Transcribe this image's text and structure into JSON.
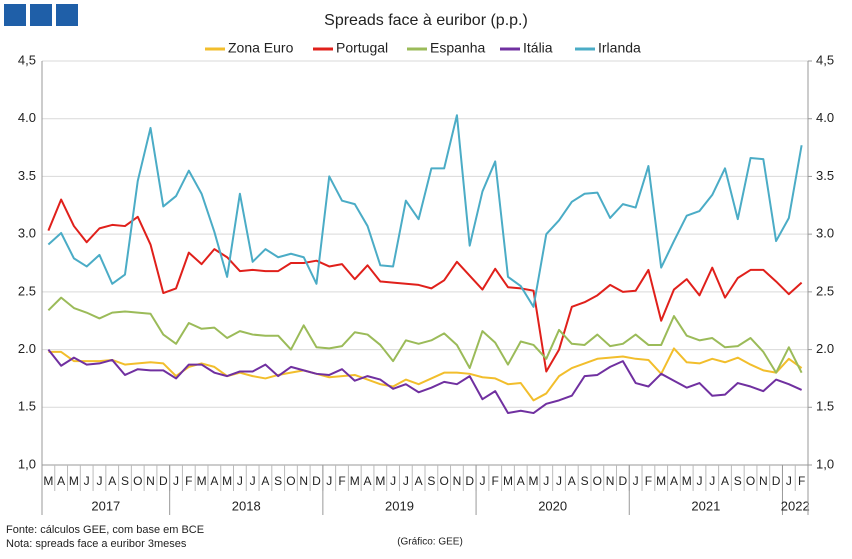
{
  "chart_data": {
    "type": "line",
    "title": "Spreads face à euribor (p.p.)",
    "categories": [
      "M",
      "A",
      "M",
      "J",
      "J",
      "A",
      "S",
      "O",
      "N",
      "D",
      "J",
      "F",
      "M",
      "A",
      "M",
      "J",
      "J",
      "A",
      "S",
      "O",
      "N",
      "D",
      "J",
      "F",
      "M",
      "A",
      "M",
      "J",
      "J",
      "A",
      "S",
      "O",
      "N",
      "D",
      "J",
      "F",
      "M",
      "A",
      "M",
      "J",
      "J",
      "A",
      "S",
      "O",
      "N",
      "D",
      "J",
      "F",
      "M",
      "A",
      "M",
      "J",
      "J",
      "A",
      "S",
      "O",
      "N",
      "D",
      "J",
      "F"
    ],
    "year_groups": [
      {
        "label": "2017",
        "span": 10
      },
      {
        "label": "2018",
        "span": 12
      },
      {
        "label": "2019",
        "span": 12
      },
      {
        "label": "2020",
        "span": 12
      },
      {
        "label": "2021",
        "span": 12
      },
      {
        "label": "2022",
        "span": 2
      }
    ],
    "series": [
      {
        "name": "Zona Euro",
        "color": "#f2be2c",
        "values": [
          1.98,
          1.98,
          1.9,
          1.9,
          1.9,
          1.91,
          1.87,
          1.88,
          1.89,
          1.88,
          1.77,
          1.85,
          1.88,
          1.85,
          1.77,
          1.8,
          1.77,
          1.75,
          1.78,
          1.8,
          1.82,
          1.79,
          1.76,
          1.77,
          1.78,
          1.74,
          1.7,
          1.68,
          1.74,
          1.7,
          1.75,
          1.8,
          1.8,
          1.79,
          1.76,
          1.75,
          1.7,
          1.71,
          1.56,
          1.62,
          1.77,
          1.84,
          1.88,
          1.92,
          1.93,
          1.94,
          1.92,
          1.91,
          1.79,
          2.01,
          1.89,
          1.88,
          1.92,
          1.89,
          1.93,
          1.87,
          1.82,
          1.8,
          1.92,
          1.84
        ]
      },
      {
        "name": "Portugal",
        "color": "#e0201b",
        "values": [
          3.03,
          3.3,
          3.07,
          2.93,
          3.05,
          3.08,
          3.07,
          3.15,
          2.91,
          2.49,
          2.53,
          2.84,
          2.74,
          2.87,
          2.8,
          2.68,
          2.69,
          2.68,
          2.68,
          2.75,
          2.75,
          2.77,
          2.72,
          2.74,
          2.61,
          2.73,
          2.59,
          2.58,
          2.57,
          2.56,
          2.53,
          2.6,
          2.76,
          2.64,
          2.52,
          2.7,
          2.54,
          2.53,
          2.51,
          1.81,
          2.0,
          2.37,
          2.41,
          2.47,
          2.56,
          2.5,
          2.51,
          2.69,
          2.25,
          2.52,
          2.61,
          2.47,
          2.71,
          2.45,
          2.62,
          2.69,
          2.69,
          2.59,
          2.48,
          2.58
        ]
      },
      {
        "name": "Espanha",
        "color": "#9bbb59",
        "values": [
          2.34,
          2.45,
          2.36,
          2.32,
          2.27,
          2.32,
          2.33,
          2.32,
          2.31,
          2.13,
          2.05,
          2.23,
          2.18,
          2.19,
          2.1,
          2.16,
          2.13,
          2.12,
          2.12,
          2.0,
          2.21,
          2.02,
          2.01,
          2.03,
          2.15,
          2.13,
          2.04,
          1.9,
          2.08,
          2.05,
          2.08,
          2.14,
          2.04,
          1.84,
          2.16,
          2.06,
          1.87,
          2.07,
          2.04,
          1.92,
          2.17,
          2.05,
          2.04,
          2.13,
          2.03,
          2.05,
          2.13,
          2.04,
          2.04,
          2.29,
          2.12,
          2.08,
          2.1,
          2.02,
          2.03,
          2.1,
          1.98,
          1.8,
          2.02,
          1.8
        ]
      },
      {
        "name": "Itália",
        "color": "#7030a0",
        "values": [
          2.0,
          1.86,
          1.93,
          1.87,
          1.88,
          1.91,
          1.78,
          1.83,
          1.82,
          1.82,
          1.75,
          1.87,
          1.87,
          1.8,
          1.77,
          1.81,
          1.81,
          1.87,
          1.77,
          1.85,
          1.82,
          1.79,
          1.78,
          1.83,
          1.73,
          1.77,
          1.74,
          1.66,
          1.7,
          1.63,
          1.67,
          1.72,
          1.7,
          1.77,
          1.57,
          1.64,
          1.45,
          1.47,
          1.45,
          1.53,
          1.56,
          1.6,
          1.77,
          1.78,
          1.85,
          1.9,
          1.71,
          1.68,
          1.79,
          1.73,
          1.67,
          1.71,
          1.6,
          1.61,
          1.71,
          1.68,
          1.64,
          1.74,
          1.7,
          1.65
        ]
      },
      {
        "name": "Irlanda",
        "color": "#4bacc6",
        "values": [
          2.91,
          3.01,
          2.79,
          2.72,
          2.82,
          2.57,
          2.65,
          3.46,
          3.92,
          3.24,
          3.33,
          3.55,
          3.35,
          3.02,
          2.63,
          3.35,
          2.76,
          2.87,
          2.8,
          2.83,
          2.8,
          2.57,
          3.5,
          3.29,
          3.26,
          3.07,
          2.73,
          2.72,
          3.29,
          3.13,
          3.57,
          3.57,
          4.03,
          2.9,
          3.37,
          3.63,
          2.63,
          2.55,
          2.37,
          3.0,
          3.12,
          3.28,
          3.35,
          3.36,
          3.14,
          3.26,
          3.23,
          3.59,
          2.71,
          2.94,
          3.16,
          3.2,
          3.34,
          3.57,
          3.13,
          3.66,
          3.65,
          2.94,
          3.14,
          3.77
        ]
      }
    ],
    "ylim": [
      1.0,
      4.5
    ],
    "yticks": [
      {
        "value": 1.0,
        "label": "1,0"
      },
      1.5,
      {
        "value": 2.0,
        "label": "2.0"
      },
      2.5,
      {
        "value": 3.0,
        "label": "3.0"
      },
      3.5,
      {
        "value": 4.0,
        "label": "4.0"
      },
      {
        "value": 4.5,
        "label": "4,5"
      }
    ],
    "y2lim": [
      1.0,
      4.5
    ],
    "y2ticks": [
      {
        "value": 1.0,
        "label": "1,0"
      },
      1.5,
      {
        "value": 2.0,
        "label": "2.0"
      },
      2.5,
      {
        "value": 3.0,
        "label": "3.0"
      },
      3.5,
      {
        "value": 4.0,
        "label": "4.0"
      },
      {
        "value": 4.5,
        "label": "4,5"
      }
    ],
    "grid": true,
    "legend": "top",
    "footnotes": [
      "Fonte: cálculos GEE, com base em BCE",
      "Nota: spreads face a euribor 3meses"
    ],
    "credit": "(Gráfico: GEE)"
  }
}
